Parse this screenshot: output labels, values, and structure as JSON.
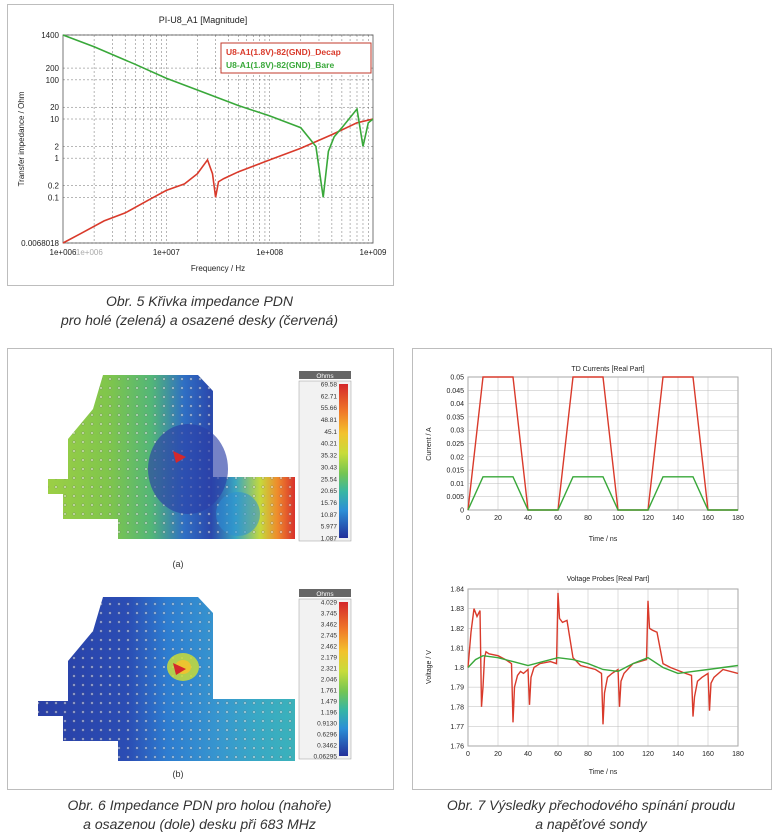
{
  "fig5": {
    "chart_data": {
      "type": "line",
      "title": "PI-U8_A1 [Magnitude]",
      "xlabel": "Frequency / Hz",
      "ylabel": "Transfer impedance / Ohm",
      "x_scale": "log",
      "y_scale": "log",
      "xlim": [
        1000000,
        1000000000
      ],
      "ylim": [
        0.0068018,
        1400
      ],
      "x_ticks": [
        "1e+006",
        "1e+006",
        "1e+007",
        "1e+008",
        "1e+009"
      ],
      "y_ticks": [
        "1400",
        "200",
        "100",
        "20",
        "10",
        "2",
        "1",
        "0.2",
        "0.1",
        "0.0068018"
      ],
      "legend_position": "top-right",
      "series": [
        {
          "name": "U8-A1(1.8V)-82(GND)_Decap",
          "color": "#d93a2b",
          "x": [
            1000000,
            1500000,
            2500000,
            4000000,
            7000000,
            10000000,
            15000000,
            20000000,
            25000000,
            28000000,
            30000000,
            32000000,
            36000000,
            50000000,
            100000000,
            200000000,
            400000000,
            700000000,
            1000000000
          ],
          "y": [
            0.0068,
            0.012,
            0.025,
            0.04,
            0.09,
            0.15,
            0.22,
            0.4,
            0.9,
            0.4,
            0.1,
            0.25,
            0.3,
            0.45,
            0.9,
            1.8,
            4,
            8,
            10
          ]
        },
        {
          "name": "U8-A1(1.8V)-82(GND)_Bare",
          "color": "#39a83a",
          "x": [
            1000000,
            2000000,
            5000000,
            10000000,
            20000000,
            50000000,
            100000000,
            200000000,
            280000000,
            330000000,
            370000000,
            420000000,
            500000000,
            700000000,
            800000000,
            900000000,
            1000000000
          ],
          "y": [
            1400,
            700,
            250,
            110,
            55,
            22,
            12,
            6,
            2,
            0.1,
            1.5,
            3.5,
            6,
            18,
            2,
            8,
            10
          ]
        }
      ]
    },
    "caption_line1": "Obr. 5  Křivka impedance PDN",
    "caption_line2": "pro holé (zelená) a osazené desky (červená)"
  },
  "fig6": {
    "top_unit": "Ohms",
    "top_scale": [
      "69.58",
      "62.71",
      "55.66",
      "48.81",
      "45.1",
      "40.21",
      "35.32",
      "30.43",
      "25.54",
      "20.65",
      "15.76",
      "10.87",
      "5.977",
      "1.087"
    ],
    "label_a": "(a)",
    "bottom_unit": "Ohms",
    "bottom_scale": [
      "4.029",
      "3.745",
      "3.462",
      "2.745",
      "2.462",
      "2.179",
      "2.321",
      "2.046",
      "1.761",
      "1.479",
      "1.196",
      "0.9130",
      "0.6296",
      "0.3462",
      "0.06295"
    ],
    "label_b": "(b)",
    "colors": [
      "#d4282b",
      "#f07a2a",
      "#f3c22c",
      "#c7dc3a",
      "#74c553",
      "#37b6a4",
      "#2c8fd6",
      "#2b55b8",
      "#24309a"
    ],
    "caption_line1": "Obr. 6  Impedance PDN pro holou (nahoře)",
    "caption_line2": "a osazenou (dole) desku při 683 MHz"
  },
  "fig7": {
    "current_chart": {
      "type": "line",
      "title": "TD Currents [Real Part]",
      "xlabel": "Time / ns",
      "ylabel": "Current / A",
      "xlim": [
        0,
        180
      ],
      "ylim": [
        0,
        0.05
      ],
      "x_ticks": [
        "0",
        "20",
        "40",
        "60",
        "80",
        "100",
        "120",
        "140",
        "160",
        "180"
      ],
      "y_ticks": [
        "0.05",
        "0.045",
        "0.04",
        "0.035",
        "0.03",
        "0.025",
        "0.02",
        "0.015",
        "0.01",
        "0.005",
        "0"
      ],
      "series": [
        {
          "name": "",
          "color": "#d93a2b",
          "x": [
            0,
            10,
            30,
            40,
            60,
            70,
            90,
            100,
            120,
            130,
            150,
            160,
            180
          ],
          "y": [
            0,
            0.05,
            0.05,
            0,
            0,
            0.05,
            0.05,
            0,
            0,
            0.05,
            0.05,
            0,
            0
          ]
        },
        {
          "name": "",
          "color": "#39a83a",
          "x": [
            0,
            10,
            30,
            40,
            60,
            70,
            90,
            100,
            120,
            130,
            150,
            160,
            180
          ],
          "y": [
            0,
            0.0125,
            0.0125,
            0,
            0,
            0.0125,
            0.0125,
            0,
            0,
            0.0125,
            0.0125,
            0,
            0
          ]
        }
      ]
    },
    "voltage_chart": {
      "type": "line",
      "title": "Voltage Probes [Real Part]",
      "xlabel": "Time / ns",
      "ylabel": "Voltage / V",
      "xlim": [
        0,
        180
      ],
      "ylim": [
        1.76,
        1.84
      ],
      "x_ticks": [
        "0",
        "20",
        "40",
        "60",
        "80",
        "100",
        "120",
        "140",
        "160",
        "180"
      ],
      "y_ticks": [
        "1.84",
        "1.83",
        "1.82",
        "1.81",
        "1.8",
        "1.79",
        "1.78",
        "1.77",
        "1.76"
      ],
      "series": [
        {
          "name": "",
          "color": "#d93a2b",
          "x": [
            0,
            2,
            4,
            6,
            8,
            9,
            10,
            11,
            12,
            14,
            20,
            25,
            29,
            30,
            31,
            33,
            35,
            37,
            40,
            41,
            42,
            44,
            48,
            55,
            59,
            60,
            61,
            63,
            66,
            70,
            75,
            85,
            89,
            90,
            91,
            93,
            96,
            100,
            101,
            102,
            104,
            110,
            119,
            120,
            121,
            123,
            126,
            130,
            135,
            145,
            149,
            150,
            151,
            153,
            156,
            160,
            161,
            162,
            164,
            170,
            180
          ],
          "y": [
            1.8,
            1.818,
            1.83,
            1.826,
            1.829,
            1.78,
            1.79,
            1.805,
            1.808,
            1.807,
            1.806,
            1.804,
            1.802,
            1.772,
            1.79,
            1.796,
            1.798,
            1.797,
            1.799,
            1.781,
            1.795,
            1.8,
            1.802,
            1.803,
            1.802,
            1.838,
            1.825,
            1.823,
            1.824,
            1.805,
            1.801,
            1.799,
            1.797,
            1.771,
            1.787,
            1.795,
            1.797,
            1.799,
            1.78,
            1.793,
            1.797,
            1.802,
            1.804,
            1.834,
            1.82,
            1.819,
            1.818,
            1.802,
            1.8,
            1.797,
            1.796,
            1.775,
            1.785,
            1.793,
            1.795,
            1.797,
            1.778,
            1.792,
            1.795,
            1.799,
            1.797
          ]
        },
        {
          "name": "",
          "color": "#39a83a",
          "x": [
            0,
            5,
            10,
            20,
            30,
            40,
            50,
            60,
            70,
            80,
            90,
            100,
            110,
            120,
            130,
            140,
            150,
            160,
            170,
            180
          ],
          "y": [
            1.8,
            1.804,
            1.806,
            1.805,
            1.803,
            1.801,
            1.803,
            1.805,
            1.804,
            1.802,
            1.799,
            1.798,
            1.802,
            1.805,
            1.8,
            1.797,
            1.798,
            1.799,
            1.8,
            1.801
          ]
        }
      ]
    },
    "caption_line1": "Obr. 7  Výsledky přechodového spínání proudu",
    "caption_line2": "a napěťové sondy"
  }
}
